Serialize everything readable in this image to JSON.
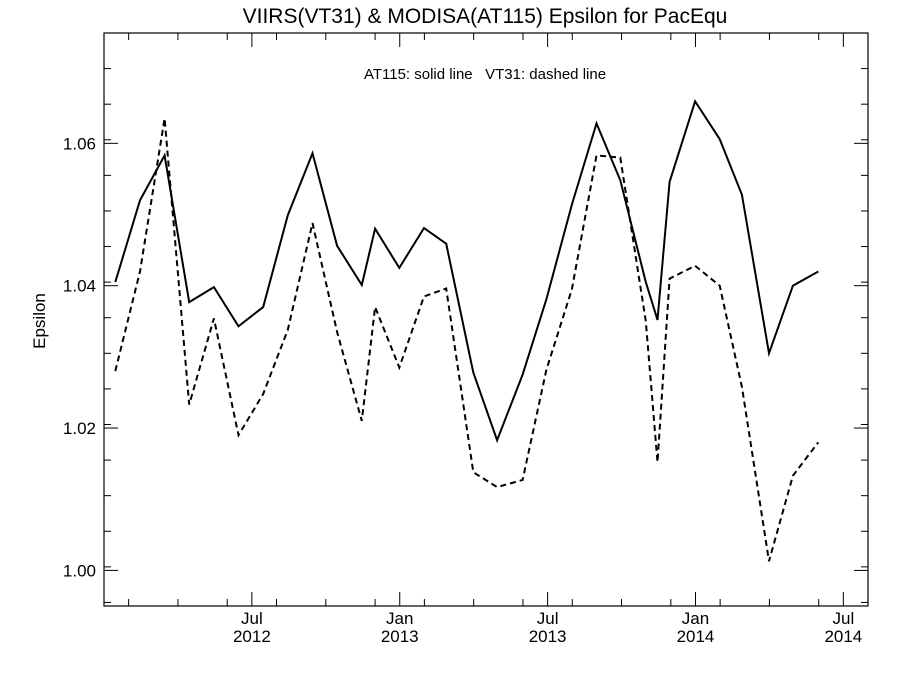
{
  "chart_data": {
    "type": "line",
    "title": "VIIRS(VT31) & MODISA(AT115)  Epsilon for PacEqu",
    "annotation": "AT115: solid line   VT31: dashed line",
    "ylabel": "Epsilon",
    "xlabel": "",
    "ylim": [
      0.995,
      1.0755
    ],
    "x_start": "2012-01",
    "x_end": "2014-08",
    "y_ticks": [
      {
        "value": 1.0,
        "label": "1.00"
      },
      {
        "value": 1.02,
        "label": "1.02"
      },
      {
        "value": 1.04,
        "label": "1.04"
      },
      {
        "value": 1.06,
        "label": "1.06"
      }
    ],
    "x_ticks": [
      {
        "date": "2012-07",
        "line1": "Jul",
        "line2": "2012"
      },
      {
        "date": "2013-01",
        "line1": "Jan",
        "line2": "2013"
      },
      {
        "date": "2013-07",
        "line1": "Jul",
        "line2": "2013"
      },
      {
        "date": "2014-01",
        "line1": "Jan",
        "line2": "2014"
      },
      {
        "date": "2014-07",
        "line1": "Jul",
        "line2": "2014"
      }
    ],
    "series": [
      {
        "name": "AT115",
        "style": "solid",
        "color": "#000000",
        "points": [
          [
            "2012-01-15",
            1.0405
          ],
          [
            "2012-02-15",
            1.052
          ],
          [
            "2012-03-15",
            1.0583
          ],
          [
            "2012-04-15",
            1.0377
          ],
          [
            "2012-05-15",
            1.0398
          ],
          [
            "2012-06-15",
            1.0343
          ],
          [
            "2012-07-15",
            1.037
          ],
          [
            "2012-08-15",
            1.0499
          ],
          [
            "2012-09-15",
            1.0586
          ],
          [
            "2012-10-15",
            1.0456
          ],
          [
            "2012-11-15",
            1.0401
          ],
          [
            "2012-12-01",
            1.048
          ],
          [
            "2012-12-31",
            1.0425
          ],
          [
            "2013-01-31",
            1.0481
          ],
          [
            "2013-02-28",
            1.0459
          ],
          [
            "2013-03-31",
            1.0278
          ],
          [
            "2013-04-30",
            1.0183
          ],
          [
            "2013-05-31",
            1.0275
          ],
          [
            "2013-06-30",
            1.0381
          ],
          [
            "2013-07-31",
            1.0514
          ],
          [
            "2013-08-31",
            1.0628
          ],
          [
            "2013-09-30",
            1.0548
          ],
          [
            "2013-10-31",
            1.0405
          ],
          [
            "2013-11-15",
            1.0352
          ],
          [
            "2013-11-30",
            1.0546
          ],
          [
            "2013-12-31",
            1.0659
          ],
          [
            "2014-01-31",
            1.0606
          ],
          [
            "2014-02-28",
            1.0528
          ],
          [
            "2014-03-31",
            1.0305
          ],
          [
            "2014-04-30",
            1.04
          ],
          [
            "2014-05-31",
            1.042
          ]
        ]
      },
      {
        "name": "VT31",
        "style": "dashed",
        "color": "#000000",
        "points": [
          [
            "2012-01-15",
            1.028
          ],
          [
            "2012-02-15",
            1.042
          ],
          [
            "2012-03-15",
            1.0635
          ],
          [
            "2012-04-15",
            1.0233
          ],
          [
            "2012-05-15",
            1.0354
          ],
          [
            "2012-06-15",
            1.019
          ],
          [
            "2012-07-15",
            1.0248
          ],
          [
            "2012-08-15",
            1.0338
          ],
          [
            "2012-09-15",
            1.0488
          ],
          [
            "2012-10-15",
            1.0335
          ],
          [
            "2012-11-15",
            1.021
          ],
          [
            "2012-12-01",
            1.037
          ],
          [
            "2012-12-31",
            1.0285
          ],
          [
            "2013-01-31",
            1.0385
          ],
          [
            "2013-02-28",
            1.0396
          ],
          [
            "2013-03-31",
            1.0138
          ],
          [
            "2013-04-30",
            1.0117
          ],
          [
            "2013-05-31",
            1.0127
          ],
          [
            "2013-06-30",
            1.0282
          ],
          [
            "2013-07-31",
            1.0395
          ],
          [
            "2013-08-31",
            1.0583
          ],
          [
            "2013-09-30",
            1.058
          ],
          [
            "2013-10-31",
            1.035
          ],
          [
            "2013-11-15",
            1.0152
          ],
          [
            "2013-11-30",
            1.041
          ],
          [
            "2013-12-31",
            1.0428
          ],
          [
            "2014-01-31",
            1.04
          ],
          [
            "2014-02-28",
            1.0258
          ],
          [
            "2014-03-31",
            1.0013
          ],
          [
            "2014-04-30",
            1.0133
          ],
          [
            "2014-05-31",
            1.018
          ]
        ]
      }
    ],
    "grid": false,
    "legend": "none"
  }
}
